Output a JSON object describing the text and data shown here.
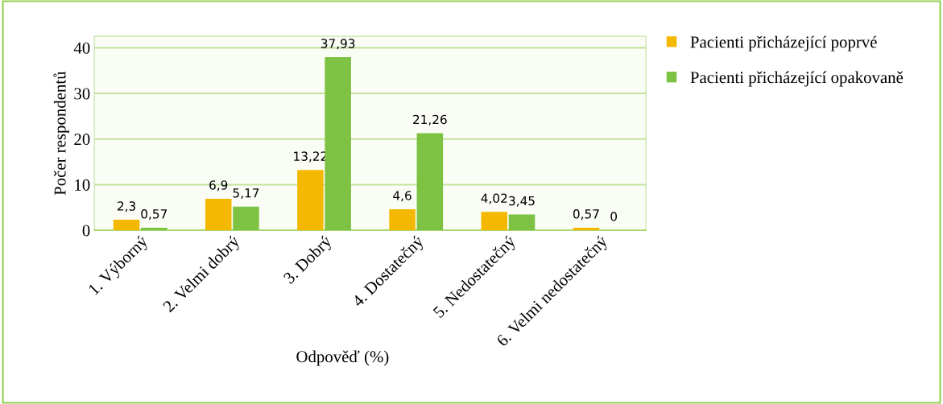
{
  "chart_data": {
    "type": "bar",
    "xlabel": "Odpověď (%)",
    "ylabel": "Počer respondentů",
    "categories": [
      "1. Výborný",
      "2. Velmi dobrý",
      "3. Dobrý",
      "4. Dostatečný",
      "5. Nedostatečný",
      "6. Velmi nedostatečný"
    ],
    "series": [
      {
        "name": "Pacienti přicházející poprvé",
        "color": "#f5b800",
        "values": [
          2.3,
          6.9,
          13.22,
          4.6,
          4.02,
          0.57
        ],
        "value_labels": [
          "2,3",
          "6,9",
          "13,22",
          "4,6",
          "4,02",
          "0,57"
        ]
      },
      {
        "name": "Pacienti přicházející opakovaně",
        "color": "#7dc242",
        "values": [
          0.57,
          5.17,
          37.93,
          21.26,
          3.45,
          0
        ],
        "value_labels": [
          "0,57",
          "5,17",
          "37,93",
          "21,26",
          "3,45",
          "0"
        ]
      }
    ],
    "ylim": [
      0,
      42.5
    ],
    "yticks": [
      0,
      10,
      20,
      30,
      40
    ],
    "grid": "y",
    "legend": "right"
  }
}
